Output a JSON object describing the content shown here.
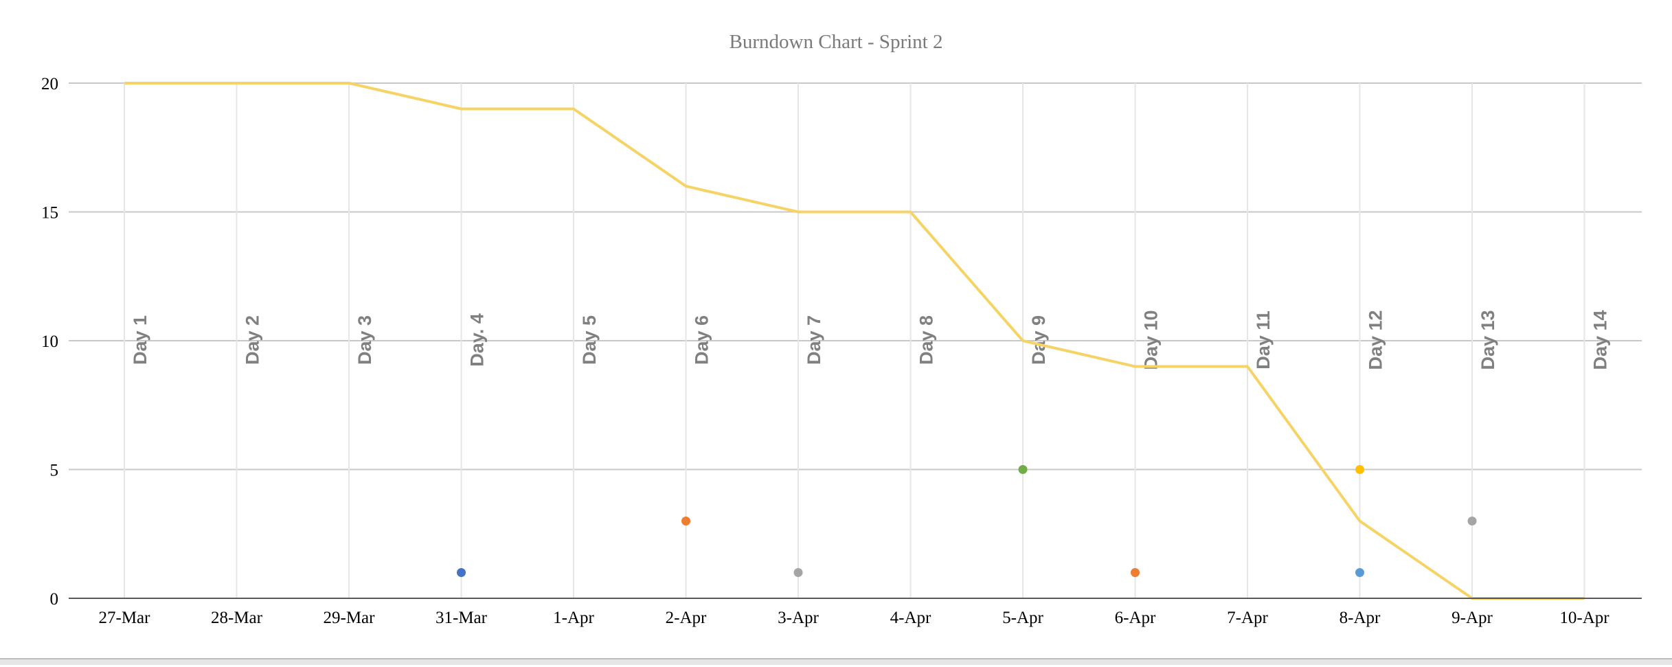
{
  "chart_data": {
    "type": "line",
    "title": "Burndown Chart - Sprint 2",
    "xlabel": "",
    "ylabel": "",
    "ylim": [
      0,
      20
    ],
    "y_ticks": [
      "0",
      "5",
      "10",
      "15",
      "20"
    ],
    "categories": [
      "27-Mar",
      "28-Mar",
      "29-Mar",
      "31-Mar",
      "1-Apr",
      "2-Apr",
      "3-Apr",
      "4-Apr",
      "5-Apr",
      "6-Apr",
      "7-Apr",
      "8-Apr",
      "9-Apr",
      "10-Apr"
    ],
    "day_labels": [
      "Day 1",
      "Day 2",
      "Day 3",
      "Day. 4",
      "Day 5",
      "Day 6",
      "Day 7",
      "Day 8",
      "Day 9",
      "Day 10",
      "Day 11",
      "Day 12",
      "Day 13",
      "Day 14"
    ],
    "series": [
      {
        "color": "#f6d365",
        "values": [
          20,
          20,
          20,
          19,
          19,
          16,
          15,
          15,
          10,
          9,
          9,
          3,
          0,
          0
        ]
      }
    ],
    "points": [
      {
        "category": "31-Mar",
        "value": 1,
        "color": "#4472c4"
      },
      {
        "category": "2-Apr",
        "value": 3,
        "color": "#ed7d31"
      },
      {
        "category": "3-Apr",
        "value": 1,
        "color": "#a5a5a5"
      },
      {
        "category": "5-Apr",
        "value": 5,
        "color": "#70ad47"
      },
      {
        "category": "6-Apr",
        "value": 1,
        "color": "#ed7d31"
      },
      {
        "category": "8-Apr",
        "value": 5,
        "color": "#ffc000"
      },
      {
        "category": "8-Apr",
        "value": 1,
        "color": "#5b9bd5"
      },
      {
        "category": "9-Apr",
        "value": 3,
        "color": "#a5a5a5"
      }
    ],
    "grid": true,
    "legend": "none"
  }
}
